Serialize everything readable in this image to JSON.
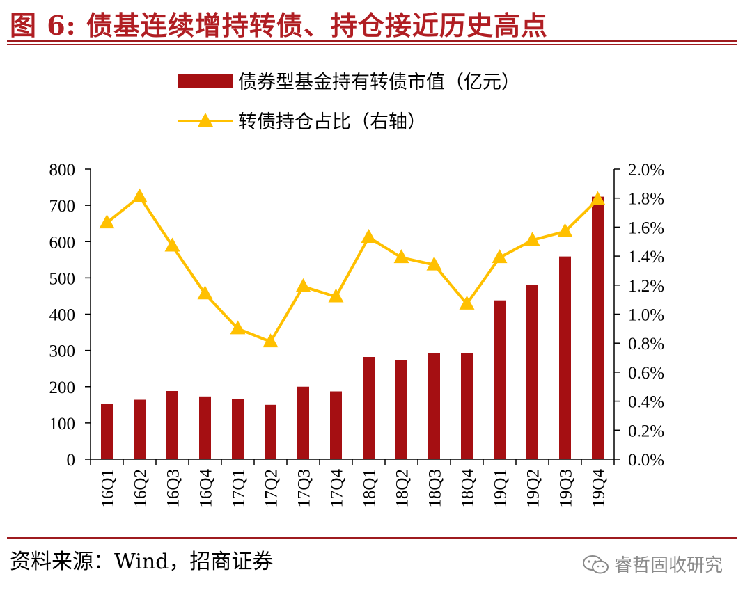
{
  "title": "图 6:  债基连续增持转债、持仓接近历史高点",
  "source": "资料来源：Wind，招商证券",
  "watermark": {
    "icon": "wechat-icon",
    "text": "睿哲固收研究"
  },
  "colors": {
    "bar": "#a50f12",
    "line": "#ffc000",
    "title": "#b01e23",
    "rule": "#9e1b1f"
  },
  "chart_data": {
    "type": "bar",
    "categories": [
      "16Q1",
      "16Q2",
      "16Q3",
      "16Q4",
      "17Q1",
      "17Q2",
      "17Q3",
      "17Q4",
      "18Q1",
      "18Q2",
      "18Q3",
      "18Q4",
      "19Q1",
      "19Q2",
      "19Q3",
      "19Q4"
    ],
    "series": [
      {
        "name": "债券型基金持有转债市值（亿元）",
        "type": "bar",
        "axis": "left",
        "values": [
          153,
          164,
          188,
          173,
          166,
          150,
          200,
          187,
          282,
          273,
          292,
          292,
          438,
          481,
          559,
          724
        ]
      },
      {
        "name": "转债持仓占比（右轴）",
        "type": "line",
        "axis": "right",
        "values": [
          1.63,
          1.81,
          1.47,
          1.14,
          0.9,
          0.81,
          1.19,
          1.12,
          1.53,
          1.39,
          1.34,
          1.07,
          1.39,
          1.51,
          1.57,
          1.79
        ]
      }
    ],
    "y_left": {
      "min": 0,
      "max": 800,
      "ticks": [
        "0",
        "100",
        "200",
        "300",
        "400",
        "500",
        "600",
        "700",
        "800"
      ]
    },
    "y_right": {
      "min": 0,
      "max": 2.0,
      "ticks": [
        "0.0%",
        "0.2%",
        "0.4%",
        "0.6%",
        "0.8%",
        "1.0%",
        "1.2%",
        "1.4%",
        "1.6%",
        "1.8%",
        "2.0%"
      ]
    },
    "grid": false
  }
}
